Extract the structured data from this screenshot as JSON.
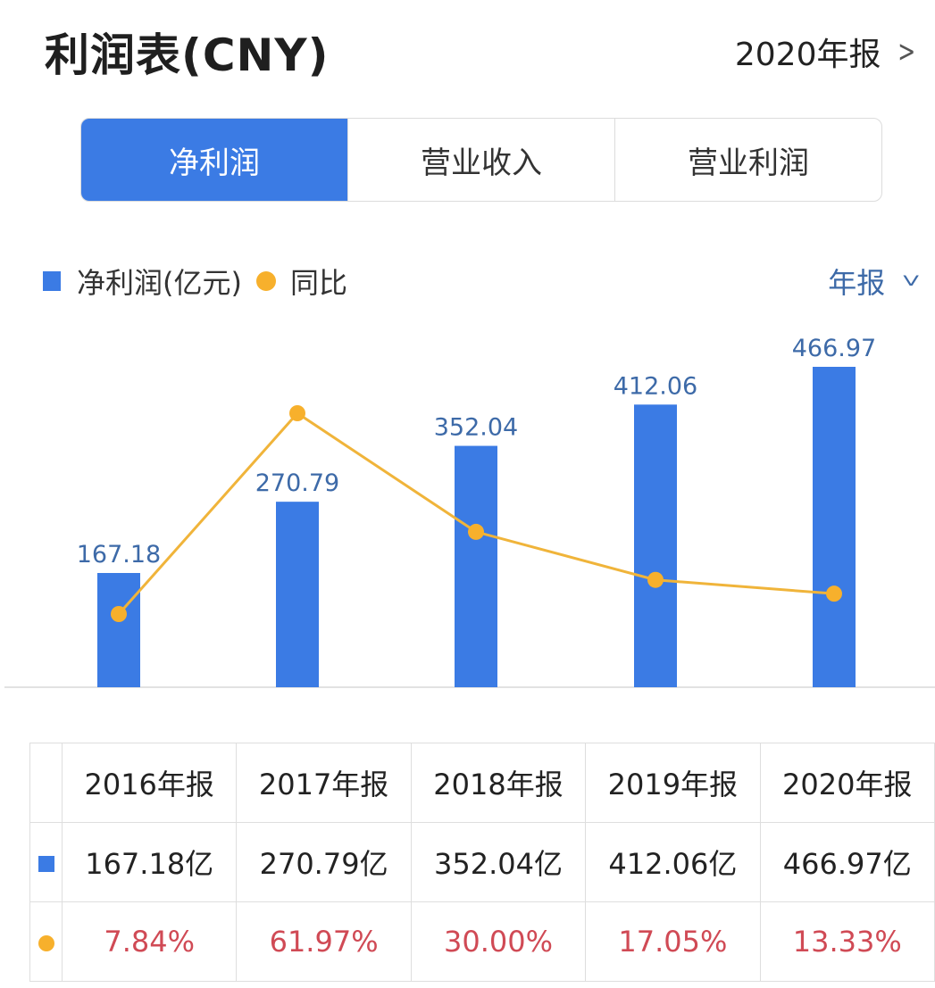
{
  "header": {
    "title": "利润表(CNY)",
    "period_label": "2020年报",
    "period_chevron_icon": "chevron-right-icon"
  },
  "tabs": [
    {
      "label": "净利润",
      "active": true
    },
    {
      "label": "营业收入",
      "active": false
    },
    {
      "label": "营业利润",
      "active": false
    }
  ],
  "legend": {
    "bar_label": "净利润(亿元)",
    "line_label": "同比",
    "frequency_label": "年报",
    "frequency_chevron_icon": "chevron-down-icon"
  },
  "colors": {
    "bar": "#3b7be4",
    "line": "#f7b02c",
    "value_label": "#3d6aa8",
    "percent_text": "#d04a55",
    "active_tab": "#3b7be4"
  },
  "chart_data": {
    "type": "bar",
    "title": "利润表(CNY) - 净利润",
    "categories": [
      "2016年报",
      "2017年报",
      "2018年报",
      "2019年报",
      "2020年报"
    ],
    "series": [
      {
        "name": "净利润(亿元)",
        "type": "bar",
        "values": [
          167.18,
          270.79,
          352.04,
          412.06,
          466.97
        ]
      },
      {
        "name": "同比",
        "type": "line",
        "values": [
          7.84,
          61.97,
          30.0,
          17.05,
          13.33
        ],
        "unit": "%"
      }
    ],
    "bar_labels": [
      "167.18",
      "270.79",
      "352.04",
      "412.06",
      "466.97"
    ],
    "xlabel": "",
    "ylabel": "",
    "grid": false,
    "legend_position": "top-left"
  },
  "table": {
    "headers": [
      "2016年报",
      "2017年报",
      "2018年报",
      "2019年报",
      "2020年报"
    ],
    "net_profit": [
      "167.18亿",
      "270.79亿",
      "352.04亿",
      "412.06亿",
      "466.97亿"
    ],
    "yoy": [
      "7.84%",
      "61.97%",
      "30.00%",
      "17.05%",
      "13.33%"
    ]
  }
}
